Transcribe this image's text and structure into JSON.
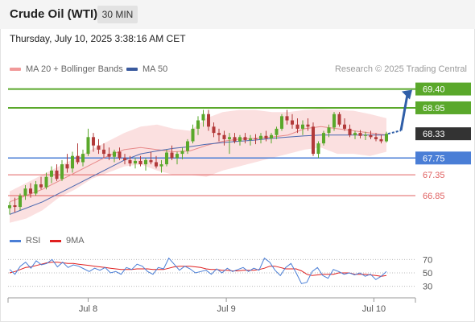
{
  "header": {
    "title": "Crude Oil (WTI)",
    "timeframe": "30 MIN",
    "datetime": "Thursday, July 10, 2025 3:38:16 AM CET"
  },
  "legend": {
    "ma20_label": "MA 20 + Bollinger Bands",
    "ma50_label": "MA 50",
    "credit": "Research © 2025 Trading Central"
  },
  "rsi_legend": {
    "rsi_label": "RSI",
    "ma_label": "9MA"
  },
  "colors": {
    "green": "#5aa82b",
    "blue": "#4a7ed6",
    "red": "#e06060",
    "dark": "#333333",
    "bull": "#5aa82b",
    "bear": "#b23a3a",
    "band_fill": "#fbe0e0",
    "ma20": "#e88a8a",
    "ma50": "#4b68b0",
    "arrow": "#2f5ea8"
  },
  "chart_data": [
    {
      "type": "candlestick",
      "ylim": [
        66.1,
        69.7
      ],
      "x_ticks": [
        "Jul 8",
        "Jul 9",
        "Jul 10"
      ],
      "levels": [
        {
          "value": 69.4,
          "label": "69.40",
          "kind": "resistance"
        },
        {
          "value": 68.95,
          "label": "68.95",
          "kind": "resistance"
        },
        {
          "value": 68.33,
          "label": "68.33",
          "kind": "last"
        },
        {
          "value": 67.75,
          "label": "67.75",
          "kind": "pivot"
        },
        {
          "value": 67.35,
          "label": "67.35",
          "kind": "support"
        },
        {
          "value": 66.85,
          "label": "66.85",
          "kind": "support"
        }
      ],
      "candles": [
        [
          66.55,
          66.7,
          66.4,
          66.62
        ],
        [
          66.62,
          66.8,
          66.45,
          66.58
        ],
        [
          66.58,
          66.9,
          66.5,
          66.85
        ],
        [
          66.85,
          67.1,
          66.75,
          67.02
        ],
        [
          67.02,
          67.15,
          66.8,
          66.9
        ],
        [
          66.9,
          67.2,
          66.85,
          67.12
        ],
        [
          67.12,
          67.3,
          67.0,
          67.05
        ],
        [
          67.05,
          67.4,
          67.0,
          67.3
        ],
        [
          67.3,
          67.55,
          67.15,
          67.45
        ],
        [
          67.45,
          67.6,
          67.2,
          67.25
        ],
        [
          67.25,
          67.7,
          67.2,
          67.6
        ],
        [
          67.6,
          67.85,
          67.4,
          67.5
        ],
        [
          67.5,
          67.9,
          67.4,
          67.8
        ],
        [
          67.8,
          68.1,
          67.6,
          67.65
        ],
        [
          67.65,
          67.95,
          67.55,
          67.85
        ],
        [
          67.85,
          68.45,
          67.8,
          68.25
        ],
        [
          68.25,
          68.35,
          67.9,
          68.05
        ],
        [
          68.05,
          68.2,
          67.85,
          67.95
        ],
        [
          67.95,
          68.1,
          67.75,
          67.85
        ],
        [
          67.85,
          68.0,
          67.7,
          67.78
        ],
        [
          67.78,
          67.95,
          67.65,
          67.9
        ],
        [
          67.9,
          68.0,
          67.7,
          67.75
        ],
        [
          67.75,
          67.85,
          67.6,
          67.7
        ],
        [
          67.7,
          67.8,
          67.55,
          67.62
        ],
        [
          67.62,
          67.75,
          67.5,
          67.68
        ],
        [
          67.68,
          67.8,
          67.55,
          67.6
        ],
        [
          67.6,
          67.75,
          67.45,
          67.7
        ],
        [
          67.7,
          67.9,
          67.6,
          67.65
        ],
        [
          67.65,
          67.8,
          67.5,
          67.55
        ],
        [
          67.55,
          67.7,
          67.4,
          67.6
        ],
        [
          67.6,
          67.95,
          67.55,
          67.88
        ],
        [
          67.88,
          68.05,
          67.7,
          67.75
        ],
        [
          67.75,
          67.9,
          67.6,
          67.85
        ],
        [
          67.85,
          68.0,
          67.72,
          67.92
        ],
        [
          67.92,
          68.2,
          67.85,
          68.15
        ],
        [
          68.15,
          68.55,
          68.1,
          68.45
        ],
        [
          68.45,
          68.75,
          68.3,
          68.65
        ],
        [
          68.65,
          68.9,
          68.5,
          68.8
        ],
        [
          68.8,
          68.9,
          68.4,
          68.5
        ],
        [
          68.5,
          68.6,
          68.25,
          68.35
        ],
        [
          68.35,
          68.45,
          68.15,
          68.3
        ],
        [
          68.3,
          68.4,
          68.05,
          68.2
        ],
        [
          68.2,
          68.35,
          67.85,
          68.25
        ],
        [
          68.25,
          68.35,
          68.1,
          68.15
        ],
        [
          68.15,
          68.3,
          68.05,
          68.25
        ],
        [
          68.25,
          68.35,
          68.1,
          68.18
        ],
        [
          68.18,
          68.3,
          68.05,
          68.22
        ],
        [
          68.22,
          68.32,
          68.08,
          68.2
        ],
        [
          68.2,
          68.35,
          68.1,
          68.28
        ],
        [
          68.28,
          68.4,
          68.15,
          68.22
        ],
        [
          68.22,
          68.35,
          68.1,
          68.3
        ],
        [
          68.3,
          68.5,
          68.2,
          68.45
        ],
        [
          68.45,
          68.8,
          68.4,
          68.75
        ],
        [
          68.75,
          68.9,
          68.55,
          68.65
        ],
        [
          68.65,
          68.8,
          68.45,
          68.55
        ],
        [
          68.55,
          68.7,
          68.35,
          68.45
        ],
        [
          68.45,
          68.65,
          68.3,
          68.55
        ],
        [
          68.55,
          68.7,
          68.4,
          68.5
        ],
        [
          68.5,
          68.6,
          67.8,
          67.85
        ],
        [
          67.85,
          68.15,
          67.75,
          68.1
        ],
        [
          68.1,
          68.4,
          68.05,
          68.35
        ],
        [
          68.35,
          68.55,
          68.25,
          68.48
        ],
        [
          68.48,
          68.85,
          68.4,
          68.8
        ],
        [
          68.8,
          68.85,
          68.5,
          68.55
        ],
        [
          68.55,
          68.7,
          68.4,
          68.45
        ],
        [
          68.45,
          68.55,
          68.25,
          68.3
        ],
        [
          68.3,
          68.4,
          68.2,
          68.35
        ],
        [
          68.35,
          68.42,
          68.22,
          68.28
        ],
        [
          68.28,
          68.38,
          68.18,
          68.3
        ],
        [
          68.3,
          68.4,
          68.2,
          68.25
        ],
        [
          68.25,
          68.35,
          68.15,
          68.2
        ],
        [
          68.2,
          68.3,
          68.1,
          68.15
        ],
        [
          68.15,
          68.38,
          68.12,
          68.33
        ]
      ],
      "bollinger": {
        "upper": [
          66.95,
          67.15,
          67.35,
          67.55,
          67.75,
          67.95,
          68.15,
          68.35,
          68.5,
          68.55,
          68.45,
          68.4,
          68.7,
          68.85,
          68.9,
          68.9,
          68.85,
          68.85,
          68.9,
          68.92,
          68.9,
          68.88,
          68.8,
          68.7
        ],
        "mid": [
          66.7,
          66.85,
          67.0,
          67.2,
          67.4,
          67.6,
          67.8,
          67.95,
          68.0,
          67.95,
          67.9,
          67.92,
          68.05,
          68.15,
          68.2,
          68.22,
          68.25,
          68.3,
          68.45,
          68.5,
          68.45,
          68.4,
          68.35,
          68.3
        ],
        "lower": [
          66.2,
          66.3,
          66.5,
          66.8,
          67.0,
          67.25,
          67.4,
          67.55,
          67.6,
          67.45,
          67.35,
          67.35,
          67.3,
          67.45,
          67.55,
          67.65,
          67.75,
          67.85,
          67.95,
          68.0,
          67.85,
          67.85,
          67.8,
          67.9
        ]
      },
      "ma50": [
        66.4,
        66.55,
        66.7,
        66.9,
        67.1,
        67.3,
        67.5,
        67.7,
        67.85,
        67.92,
        67.98,
        68.02,
        68.08,
        68.12,
        68.15,
        68.18,
        68.22,
        68.25,
        68.28,
        68.3,
        68.3,
        68.3,
        68.3,
        68.3
      ]
    },
    {
      "type": "line",
      "title": "RSI",
      "ylim": [
        20,
        80
      ],
      "y_ticks": [
        70,
        50,
        30
      ],
      "series": [
        {
          "name": "RSI",
          "values": [
            55,
            48,
            60,
            66,
            57,
            68,
            62,
            64,
            70,
            59,
            66,
            58,
            62,
            60,
            56,
            52,
            57,
            54,
            58,
            50,
            52,
            48,
            58,
            55,
            63,
            60,
            52,
            48,
            58,
            56,
            72,
            63,
            54,
            60,
            56,
            50,
            52,
            54,
            48,
            56,
            50,
            57,
            52,
            55,
            58,
            52,
            57,
            54,
            72,
            66,
            54,
            46,
            58,
            64,
            50,
            34,
            36,
            52,
            58,
            46,
            42,
            55,
            52,
            48,
            50,
            47,
            50,
            45,
            48,
            40,
            45,
            52
          ]
        },
        {
          "name": "9MA",
          "values": [
            50,
            52,
            55,
            58,
            59,
            61,
            63,
            65,
            66,
            66,
            65,
            64,
            64,
            63,
            62,
            61,
            60,
            59,
            58,
            57,
            56,
            55,
            55,
            55,
            56,
            56,
            56,
            55,
            55,
            55,
            57,
            59,
            60,
            60,
            60,
            59,
            58,
            56,
            55,
            55,
            54,
            54,
            53,
            53,
            54,
            54,
            54,
            55,
            57,
            60,
            60,
            58,
            56,
            56,
            56,
            53,
            48,
            46,
            47,
            48,
            48,
            48,
            50,
            50,
            50,
            48,
            48,
            48,
            47,
            46,
            45,
            46
          ]
        }
      ]
    }
  ]
}
